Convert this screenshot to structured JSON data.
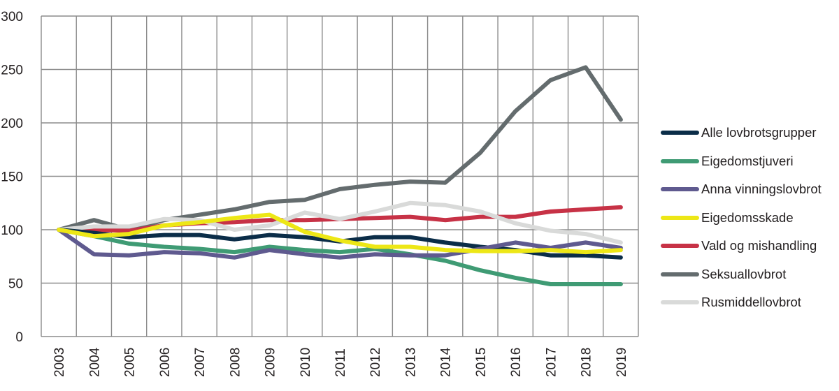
{
  "chart_data": {
    "type": "line",
    "title": "",
    "xlabel": "",
    "ylabel": "",
    "ylim": [
      0,
      300
    ],
    "yticks": [
      "0",
      "50",
      "100",
      "150",
      "200",
      "250",
      "300"
    ],
    "grid": true,
    "legend_position": "right",
    "x": [
      "2003",
      "2004",
      "2005",
      "2006",
      "2007",
      "2008",
      "2009",
      "2010",
      "2011",
      "2012",
      "2013",
      "2014",
      "2015",
      "2016",
      "2017",
      "2018",
      "2019"
    ],
    "series": [
      {
        "name": "Alle lovbrotsgrupper",
        "color": "#0b2d48",
        "values": [
          100,
          97,
          93,
          95,
          95,
          91,
          95,
          93,
          89,
          93,
          93,
          88,
          84,
          81,
          76,
          76,
          74
        ]
      },
      {
        "name": "Eigedomstjuveri",
        "color": "#3f9b74",
        "values": [
          100,
          94,
          87,
          84,
          82,
          79,
          84,
          81,
          79,
          82,
          77,
          71,
          62,
          55,
          49,
          49,
          49
        ]
      },
      {
        "name": "Anna vinningslovbrot",
        "color": "#5f5a8f",
        "values": [
          100,
          77,
          76,
          79,
          78,
          74,
          81,
          77,
          74,
          77,
          76,
          76,
          82,
          88,
          83,
          88,
          83
        ]
      },
      {
        "name": "Eigedomsskade",
        "color": "#ede716",
        "values": [
          100,
          94,
          96,
          104,
          107,
          111,
          114,
          98,
          90,
          84,
          84,
          81,
          80,
          80,
          81,
          79,
          81
        ]
      },
      {
        "name": "Vald og mishandling",
        "color": "#c73246",
        "values": [
          100,
          100,
          99,
          104,
          106,
          107,
          109,
          109,
          110,
          111,
          112,
          109,
          112,
          112,
          117,
          119,
          121
        ]
      },
      {
        "name": "Seksuallovbrot",
        "color": "#646c6e",
        "values": [
          100,
          109,
          100,
          109,
          114,
          119,
          126,
          128,
          138,
          142,
          145,
          144,
          172,
          211,
          240,
          252,
          203
        ]
      },
      {
        "name": "Rusmiddellovbrot",
        "color": "#d9dad9",
        "values": [
          100,
          103,
          103,
          110,
          109,
          100,
          104,
          116,
          110,
          117,
          125,
          123,
          117,
          106,
          99,
          96,
          88
        ]
      }
    ]
  }
}
